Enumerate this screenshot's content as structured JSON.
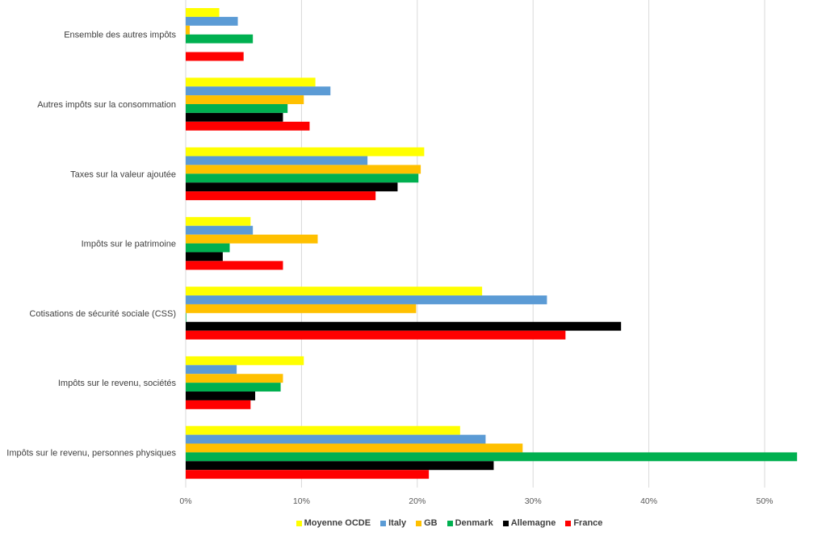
{
  "chart_data": {
    "type": "bar",
    "orientation": "horizontal",
    "title": "",
    "xlabel": "",
    "ylabel": "",
    "xlim": [
      0,
      55
    ],
    "x_ticks": [
      "0%",
      "10%",
      "20%",
      "30%",
      "40%",
      "50%"
    ],
    "x_tick_values": [
      0,
      10,
      20,
      30,
      40,
      50
    ],
    "grid": true,
    "legend_position": "bottom",
    "categories": [
      "Ensemble des autres impôts",
      "Autres impôts sur la consommation",
      "Taxes sur la valeur ajoutée",
      "Impôts sur le patrimoine",
      "Cotisations de sécurité sociale (CSS)",
      "Impôts sur le revenu, sociétés",
      "Impôts sur le revenu, personnes physiques"
    ],
    "series": [
      {
        "name": "Moyenne OCDE",
        "color": "#FFFF00",
        "values": [
          2.9,
          11.2,
          20.6,
          5.6,
          25.6,
          10.2,
          23.7
        ]
      },
      {
        "name": "Italy",
        "color": "#5B9BD5",
        "values": [
          4.5,
          12.5,
          15.7,
          5.8,
          31.2,
          4.4,
          25.9
        ]
      },
      {
        "name": "GB",
        "color": "#FFC000",
        "values": [
          0.35,
          10.2,
          20.3,
          11.4,
          19.9,
          8.4,
          29.1
        ]
      },
      {
        "name": "Denmark",
        "color": "#00B050",
        "values": [
          5.8,
          8.8,
          20.1,
          3.8,
          0.05,
          8.2,
          52.8
        ]
      },
      {
        "name": "Allemagne",
        "color": "#000000",
        "values": [
          0,
          8.4,
          18.3,
          3.2,
          37.6,
          6.0,
          26.6
        ]
      },
      {
        "name": "France",
        "color": "#FF0000",
        "values": [
          5.0,
          10.7,
          16.4,
          8.4,
          32.8,
          5.6,
          21.0
        ]
      }
    ]
  },
  "colors": {
    "gridline": "#D9D9D9",
    "text": "#404040"
  }
}
